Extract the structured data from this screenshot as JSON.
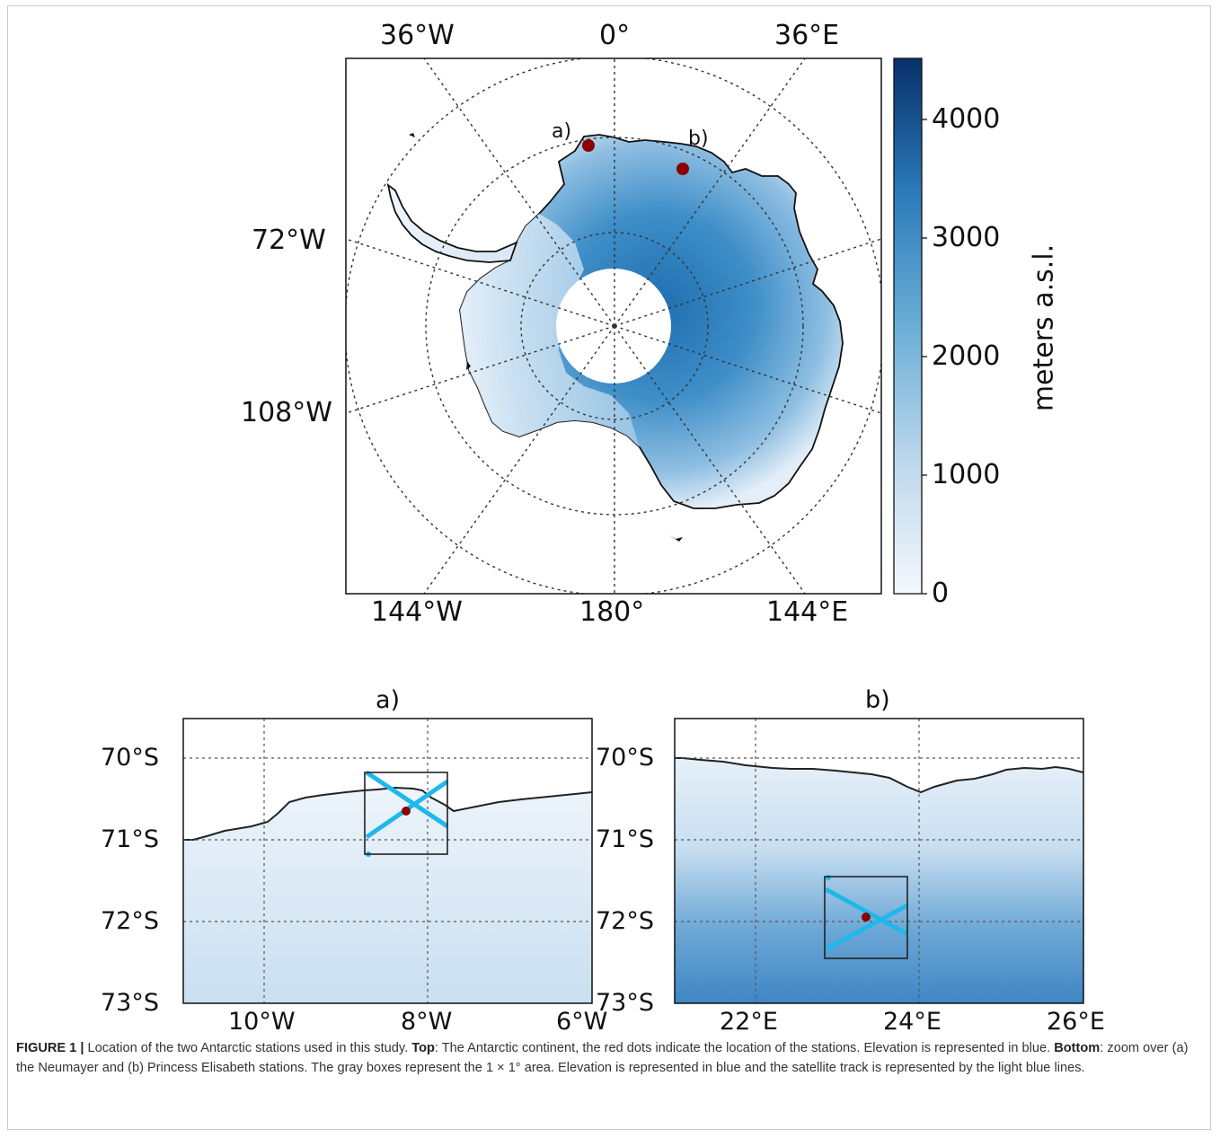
{
  "top_map": {
    "lon_labels_top": [
      "36°W",
      "0°",
      "36°E"
    ],
    "lon_labels_left": [
      "72°W",
      "108°W"
    ],
    "lon_labels_bottom": [
      "144°W",
      "180°",
      "144°E"
    ],
    "station_labels": [
      "a)",
      "b)"
    ],
    "colorbar": {
      "label": "meters a.s.l.",
      "ticks": [
        "4000",
        "3000",
        "2000",
        "1000",
        "0"
      ],
      "color_low": "#f4f8fd",
      "color_high": "#08306b"
    },
    "station_color": "#8b0000",
    "coast_color": "#111111"
  },
  "panel_a": {
    "title": "a)",
    "lat_labels": [
      "70°S",
      "71°S",
      "72°S",
      "73°S"
    ],
    "lon_labels": [
      "10°W",
      "8°W",
      "6°W"
    ]
  },
  "panel_b": {
    "title": "b)",
    "lat_labels": [
      "70°S",
      "71°S",
      "72°S",
      "73°S"
    ],
    "lon_labels": [
      "22°E",
      "24°E",
      "26°E"
    ]
  },
  "track_color": "#1fb8ea",
  "caption": {
    "figure_label": "FIGURE 1 |",
    "part1": " Location of the two Antarctic stations used in this study. ",
    "top_label": "Top",
    "part2": ": The Antarctic continent, the red dots indicate the location of the stations. Elevation is represented in blue. ",
    "bottom_label": "Bottom",
    "part3": ": zoom over (a) the Neumayer and (b) Princess Elisabeth stations. The gray boxes represent the 1 × 1° area. Elevation is represented in blue and the satellite track is represented by the light blue lines."
  }
}
